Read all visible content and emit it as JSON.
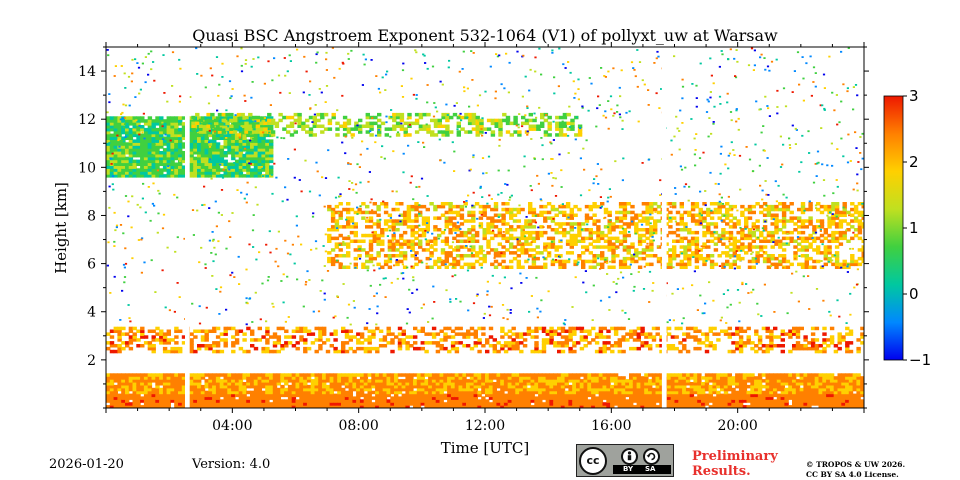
{
  "chart_data": {
    "type": "heatmap",
    "title": "Quasi BSC Angstroem Exponent 532-1064 (V1) of pollyxt_uw at Warsaw",
    "xlabel": "Time [UTC]",
    "ylabel": "Height [km]",
    "xlim_hours": [
      0,
      24
    ],
    "ylim_km": [
      0,
      15
    ],
    "x_ticks": [
      {
        "hour": 4,
        "label": "04:00"
      },
      {
        "hour": 8,
        "label": "08:00"
      },
      {
        "hour": 12,
        "label": "12:00"
      },
      {
        "hour": 16,
        "label": "16:00"
      },
      {
        "hour": 20,
        "label": "20:00"
      }
    ],
    "y_ticks": [
      {
        "km": 2,
        "label": "2"
      },
      {
        "km": 4,
        "label": "4"
      },
      {
        "km": 6,
        "label": "6"
      },
      {
        "km": 8,
        "label": "8"
      },
      {
        "km": 10,
        "label": "10"
      },
      {
        "km": 12,
        "label": "12"
      },
      {
        "km": 14,
        "label": "14"
      }
    ],
    "colorbar": {
      "range": [
        -1,
        3
      ],
      "ticks": [
        {
          "value": 3,
          "label": "3"
        },
        {
          "value": 2,
          "label": "2"
        },
        {
          "value": 1,
          "label": "1"
        },
        {
          "value": 0,
          "label": "0"
        },
        {
          "value": -1,
          "label": "−1"
        }
      ],
      "colors": [
        "#0000ee",
        "#0088ff",
        "#00c8a0",
        "#40d040",
        "#c0e020",
        "#ffd000",
        "#ff8000",
        "#ee1800"
      ]
    },
    "data_gaps_hours": [
      [
        2.5,
        2.65
      ],
      [
        17.6,
        17.75
      ]
    ],
    "features": [
      {
        "name": "boundary layer",
        "t_start": 0,
        "t_end": 24,
        "h_bottom_km": 0.0,
        "h_top_km": 1.4,
        "exponent": 2.2
      },
      {
        "name": "lower aerosol layer",
        "t_start": 0,
        "t_end": 24,
        "h_bottom_km": 2.3,
        "h_top_km": 3.3,
        "exponent": 2.3
      },
      {
        "name": "cirrus cloud",
        "t_start": 0,
        "t_end": 5.2,
        "h_bottom_km": 9.6,
        "h_top_km": 12.0,
        "exponent": 0.7
      },
      {
        "name": "cirrus band",
        "t_start": 2.7,
        "t_end": 15.0,
        "h_bottom_km": 11.3,
        "h_top_km": 12.2,
        "exponent": 1.2
      },
      {
        "name": "mid-level layer",
        "t_start": 7.0,
        "t_end": 24,
        "h_bottom_km": 5.8,
        "h_top_km": 8.5,
        "exponent": 2.0
      }
    ]
  },
  "footer": {
    "date": "2026-01-20",
    "version": "Version: 4.0",
    "preliminary_line1": "Preliminary",
    "preliminary_line2": "Results.",
    "copyright_line1": "© TROPOS & UW 2026.",
    "copyright_line2": "CC BY SA 4.0 License.",
    "license_badge": {
      "cc": "cc",
      "by": "BY",
      "sa": "SA"
    }
  },
  "icons": {
    "by": "person-icon",
    "sa": "share-alike-icon"
  }
}
